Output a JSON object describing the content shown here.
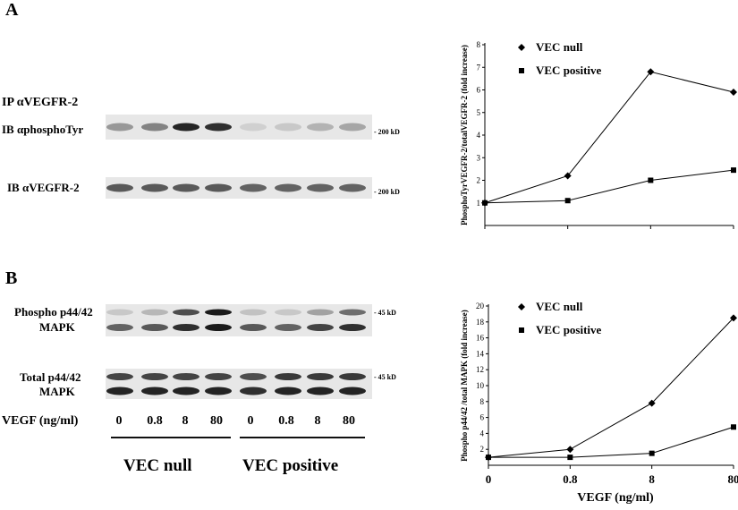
{
  "panel_a": {
    "letter": "A",
    "ip_label": "IP αVEGFR-2",
    "ib1_label": "IB αphosphoTyr",
    "ib2_label": "IB αVEGFR-2",
    "kd1": "- 200 kD",
    "kd2": "- 200 kD"
  },
  "panel_b": {
    "letter": "B",
    "phospho_line1": "Phospho p44/42",
    "phospho_line2": "MAPK",
    "total_line1": "Total p44/42",
    "total_line2": "MAPK",
    "kd1": "- 45 kD",
    "kd2": "- 45 kD",
    "vegf_label": "VEGF (ng/ml)",
    "doses": [
      "0",
      "0.8",
      "8",
      "80",
      "0",
      "0.8",
      "8",
      "80"
    ],
    "group_null": "VEC null",
    "group_positive": "VEC positive"
  },
  "blot_intensity": {
    "a_phospho": [
      0.35,
      0.45,
      0.9,
      0.85,
      0.08,
      0.12,
      0.22,
      0.28
    ],
    "a_total": [
      0.65,
      0.65,
      0.65,
      0.65,
      0.6,
      0.6,
      0.6,
      0.6
    ],
    "b_phospho_upper": [
      0.12,
      0.2,
      0.7,
      0.95,
      0.15,
      0.12,
      0.3,
      0.55
    ],
    "b_phospho_lower": [
      0.6,
      0.65,
      0.85,
      0.95,
      0.65,
      0.6,
      0.75,
      0.85
    ],
    "b_total_upper": [
      0.75,
      0.75,
      0.75,
      0.75,
      0.7,
      0.8,
      0.8,
      0.8
    ],
    "b_total_lower": [
      0.9,
      0.9,
      0.9,
      0.9,
      0.85,
      0.9,
      0.9,
      0.9
    ]
  },
  "chart_data": [
    {
      "type": "line",
      "ylabel": "PhosphoTyrVEGFR-2/totalVEGFR-2 (fold increase)",
      "categories": [
        "0",
        "0.8",
        "8",
        "80"
      ],
      "ylim": [
        0,
        8
      ],
      "yticks": [
        1,
        2,
        3,
        4,
        5,
        6,
        7,
        8
      ],
      "show_x_tick_labels": false,
      "grid": false,
      "legend": "top-right",
      "series": [
        {
          "name": "VEC null",
          "marker": "diamond",
          "values": [
            1.0,
            2.2,
            6.8,
            5.9
          ]
        },
        {
          "name": "VEC positive",
          "marker": "square",
          "values": [
            1.0,
            1.1,
            2.0,
            2.45
          ]
        }
      ]
    },
    {
      "type": "line",
      "xlabel": "VEGF (ng/ml)",
      "ylabel": "Phospho p44/42 /total MAPK (fold increase)",
      "categories": [
        "0",
        "0.8",
        "8",
        "80"
      ],
      "ylim": [
        0,
        20
      ],
      "yticks": [
        2,
        4,
        6,
        8,
        10,
        12,
        14,
        16,
        18,
        20
      ],
      "show_x_tick_labels": true,
      "grid": false,
      "legend": "top-right",
      "series": [
        {
          "name": "VEC null",
          "marker": "diamond",
          "values": [
            1.0,
            2.0,
            7.8,
            18.5
          ]
        },
        {
          "name": "VEC positive",
          "marker": "square",
          "values": [
            1.0,
            1.0,
            1.5,
            4.8
          ]
        }
      ]
    }
  ]
}
